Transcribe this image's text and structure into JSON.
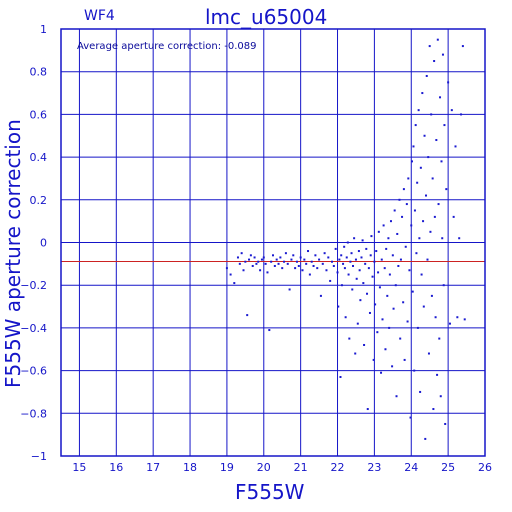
{
  "chart_data": {
    "type": "scatter",
    "title": "lmc_u65004",
    "panel_label": "WF4",
    "annotation": "Average aperture correction: -0.089",
    "xlabel": "F555W",
    "ylabel": "F555W aperture correction",
    "xlim": [
      14.5,
      26
    ],
    "ylim": [
      -1,
      1
    ],
    "x_ticks": [
      15,
      16,
      17,
      18,
      19,
      20,
      21,
      22,
      23,
      24,
      25,
      26
    ],
    "y_ticks": [
      1,
      0.8,
      0.6,
      0.4,
      0.2,
      0,
      -0.2,
      -0.4,
      -0.6,
      -0.8,
      -1
    ],
    "y_tick_labels": [
      "1",
      "0.8",
      "0.6",
      "0.4",
      "0.2",
      "0",
      "−0.2",
      "−0.4",
      "−0.6",
      "−0.8",
      "−1"
    ],
    "grid": true,
    "reference_line": {
      "y": -0.089,
      "color": "#cc2222"
    },
    "colors": {
      "axes": "#1515c8",
      "points": "#1a1ad0",
      "grid": "#1515c8"
    },
    "series": [
      {
        "points": [
          [
            19.0,
            -0.12
          ],
          [
            19.1,
            -0.15
          ],
          [
            19.2,
            -0.19
          ],
          [
            19.3,
            -0.07
          ],
          [
            19.35,
            -0.1
          ],
          [
            19.4,
            -0.05
          ],
          [
            19.45,
            -0.13
          ],
          [
            19.5,
            -0.09
          ],
          [
            19.55,
            -0.34
          ],
          [
            19.6,
            -0.08
          ],
          [
            19.65,
            -0.06
          ],
          [
            19.7,
            -0.11
          ],
          [
            19.75,
            -0.07
          ],
          [
            19.8,
            -0.1
          ],
          [
            19.85,
            -0.09
          ],
          [
            19.9,
            -0.13
          ],
          [
            19.95,
            -0.08
          ],
          [
            20.0,
            -0.07
          ],
          [
            20.05,
            -0.1
          ],
          [
            20.1,
            -0.14
          ],
          [
            20.15,
            -0.41
          ],
          [
            20.2,
            -0.09
          ],
          [
            20.25,
            -0.06
          ],
          [
            20.3,
            -0.11
          ],
          [
            20.35,
            -0.08
          ],
          [
            20.4,
            -0.1
          ],
          [
            20.45,
            -0.07
          ],
          [
            20.5,
            -0.12
          ],
          [
            20.55,
            -0.09
          ],
          [
            20.6,
            -0.05
          ],
          [
            20.65,
            -0.1
          ],
          [
            20.7,
            -0.22
          ],
          [
            20.75,
            -0.08
          ],
          [
            20.8,
            -0.06
          ],
          [
            20.85,
            -0.12
          ],
          [
            20.9,
            -0.09
          ],
          [
            20.95,
            -0.11
          ],
          [
            21.0,
            -0.07
          ],
          [
            21.05,
            -0.13
          ],
          [
            21.1,
            -0.08
          ],
          [
            21.15,
            -0.1
          ],
          [
            21.2,
            -0.04
          ],
          [
            21.25,
            -0.15
          ],
          [
            21.3,
            -0.09
          ],
          [
            21.35,
            -0.11
          ],
          [
            21.4,
            -0.06
          ],
          [
            21.45,
            -0.12
          ],
          [
            21.5,
            -0.08
          ],
          [
            21.55,
            -0.25
          ],
          [
            21.6,
            -0.1
          ],
          [
            21.65,
            -0.05
          ],
          [
            21.7,
            -0.13
          ],
          [
            21.75,
            -0.07
          ],
          [
            21.8,
            -0.18
          ],
          [
            21.85,
            -0.09
          ],
          [
            21.9,
            -0.11
          ],
          [
            21.95,
            -0.03
          ],
          [
            22.0,
            -0.14
          ],
          [
            22.02,
            -0.3
          ],
          [
            22.05,
            -0.08
          ],
          [
            22.08,
            -0.63
          ],
          [
            22.1,
            -0.06
          ],
          [
            22.12,
            -0.2
          ],
          [
            22.15,
            -0.1
          ],
          [
            22.18,
            -0.02
          ],
          [
            22.2,
            -0.12
          ],
          [
            22.22,
            -0.35
          ],
          [
            22.25,
            -0.07
          ],
          [
            22.28,
            0.0
          ],
          [
            22.3,
            -0.15
          ],
          [
            22.32,
            -0.45
          ],
          [
            22.35,
            -0.09
          ],
          [
            22.38,
            -0.05
          ],
          [
            22.4,
            -0.22
          ],
          [
            22.42,
            -0.11
          ],
          [
            22.45,
            0.02
          ],
          [
            22.48,
            -0.52
          ],
          [
            22.5,
            -0.08
          ],
          [
            22.52,
            -0.17
          ],
          [
            22.55,
            -0.38
          ],
          [
            22.58,
            -0.04
          ],
          [
            22.6,
            -0.13
          ],
          [
            22.62,
            -0.27
          ],
          [
            22.65,
            -0.07
          ],
          [
            22.68,
            0.01
          ],
          [
            22.7,
            -0.19
          ],
          [
            22.72,
            -0.48
          ],
          [
            22.75,
            -0.1
          ],
          [
            22.78,
            -0.03
          ],
          [
            22.8,
            -0.24
          ],
          [
            22.82,
            -0.78
          ],
          [
            22.85,
            -0.12
          ],
          [
            22.88,
            -0.33
          ],
          [
            22.9,
            -0.06
          ],
          [
            22.92,
            0.03
          ],
          [
            22.95,
            -0.16
          ],
          [
            22.98,
            -0.55
          ],
          [
            23.0,
            -0.09
          ],
          [
            23.02,
            -0.29
          ],
          [
            23.05,
            -0.04
          ],
          [
            23.08,
            -0.42
          ],
          [
            23.1,
            -0.14
          ],
          [
            23.12,
            0.05
          ],
          [
            23.15,
            -0.21
          ],
          [
            23.18,
            -0.61
          ],
          [
            23.2,
            -0.08
          ],
          [
            23.22,
            -0.36
          ],
          [
            23.25,
            0.08
          ],
          [
            23.28,
            -0.12
          ],
          [
            23.3,
            -0.5
          ],
          [
            23.32,
            -0.03
          ],
          [
            23.35,
            -0.25
          ],
          [
            23.38,
            0.02
          ],
          [
            23.4,
            -0.4
          ],
          [
            23.42,
            -0.15
          ],
          [
            23.45,
            0.1
          ],
          [
            23.48,
            -0.58
          ],
          [
            23.5,
            -0.06
          ],
          [
            23.52,
            -0.31
          ],
          [
            23.55,
            0.15
          ],
          [
            23.58,
            -0.2
          ],
          [
            23.6,
            -0.72
          ],
          [
            23.62,
            0.04
          ],
          [
            23.65,
            -0.11
          ],
          [
            23.68,
            0.2
          ],
          [
            23.7,
            -0.45
          ],
          [
            23.72,
            -0.08
          ],
          [
            23.75,
            0.12
          ],
          [
            23.78,
            -0.28
          ],
          [
            23.8,
            0.25
          ],
          [
            23.82,
            -0.55
          ],
          [
            23.85,
            -0.02
          ],
          [
            23.88,
            0.18
          ],
          [
            23.9,
            -0.37
          ],
          [
            23.92,
            0.3
          ],
          [
            23.95,
            -0.13
          ],
          [
            23.98,
            -0.82
          ],
          [
            24.0,
            0.08
          ],
          [
            24.02,
            0.38
          ],
          [
            24.04,
            -0.23
          ],
          [
            24.06,
            0.45
          ],
          [
            24.08,
            -0.6
          ],
          [
            24.1,
            0.15
          ],
          [
            24.12,
            0.55
          ],
          [
            24.14,
            -0.05
          ],
          [
            24.16,
            0.28
          ],
          [
            24.18,
            -0.4
          ],
          [
            24.2,
            0.62
          ],
          [
            24.22,
            0.02
          ],
          [
            24.24,
            -0.7
          ],
          [
            24.26,
            0.35
          ],
          [
            24.28,
            -0.15
          ],
          [
            24.3,
            0.7
          ],
          [
            24.32,
            0.1
          ],
          [
            24.34,
            -0.3
          ],
          [
            24.36,
            0.5
          ],
          [
            24.38,
            -0.92
          ],
          [
            24.4,
            0.22
          ],
          [
            24.42,
            0.78
          ],
          [
            24.44,
            -0.08
          ],
          [
            24.46,
            0.4
          ],
          [
            24.48,
            -0.52
          ],
          [
            24.5,
            0.92
          ],
          [
            24.52,
            0.05
          ],
          [
            24.54,
            0.6
          ],
          [
            24.56,
            -0.25
          ],
          [
            24.58,
            0.3
          ],
          [
            24.6,
            -0.78
          ],
          [
            24.62,
            0.85
          ],
          [
            24.64,
            0.12
          ],
          [
            24.66,
            -0.35
          ],
          [
            24.68,
            0.48
          ],
          [
            24.7,
            -0.62
          ],
          [
            24.72,
            0.95
          ],
          [
            24.74,
            0.18
          ],
          [
            24.76,
            -0.45
          ],
          [
            24.78,
            0.68
          ],
          [
            24.8,
            -0.72
          ],
          [
            24.82,
            0.38
          ],
          [
            24.84,
            0.02
          ],
          [
            24.86,
            0.88
          ],
          [
            24.88,
            -0.2
          ],
          [
            24.9,
            0.55
          ],
          [
            24.92,
            -0.85
          ],
          [
            24.95,
            0.25
          ],
          [
            25.0,
            0.75
          ],
          [
            25.05,
            -0.38
          ],
          [
            25.1,
            0.62
          ],
          [
            25.15,
            0.12
          ],
          [
            25.2,
            0.45
          ],
          [
            25.25,
            -0.35
          ],
          [
            25.3,
            0.02
          ],
          [
            25.35,
            0.6
          ],
          [
            25.4,
            0.92
          ],
          [
            25.45,
            -0.36
          ]
        ]
      }
    ]
  }
}
